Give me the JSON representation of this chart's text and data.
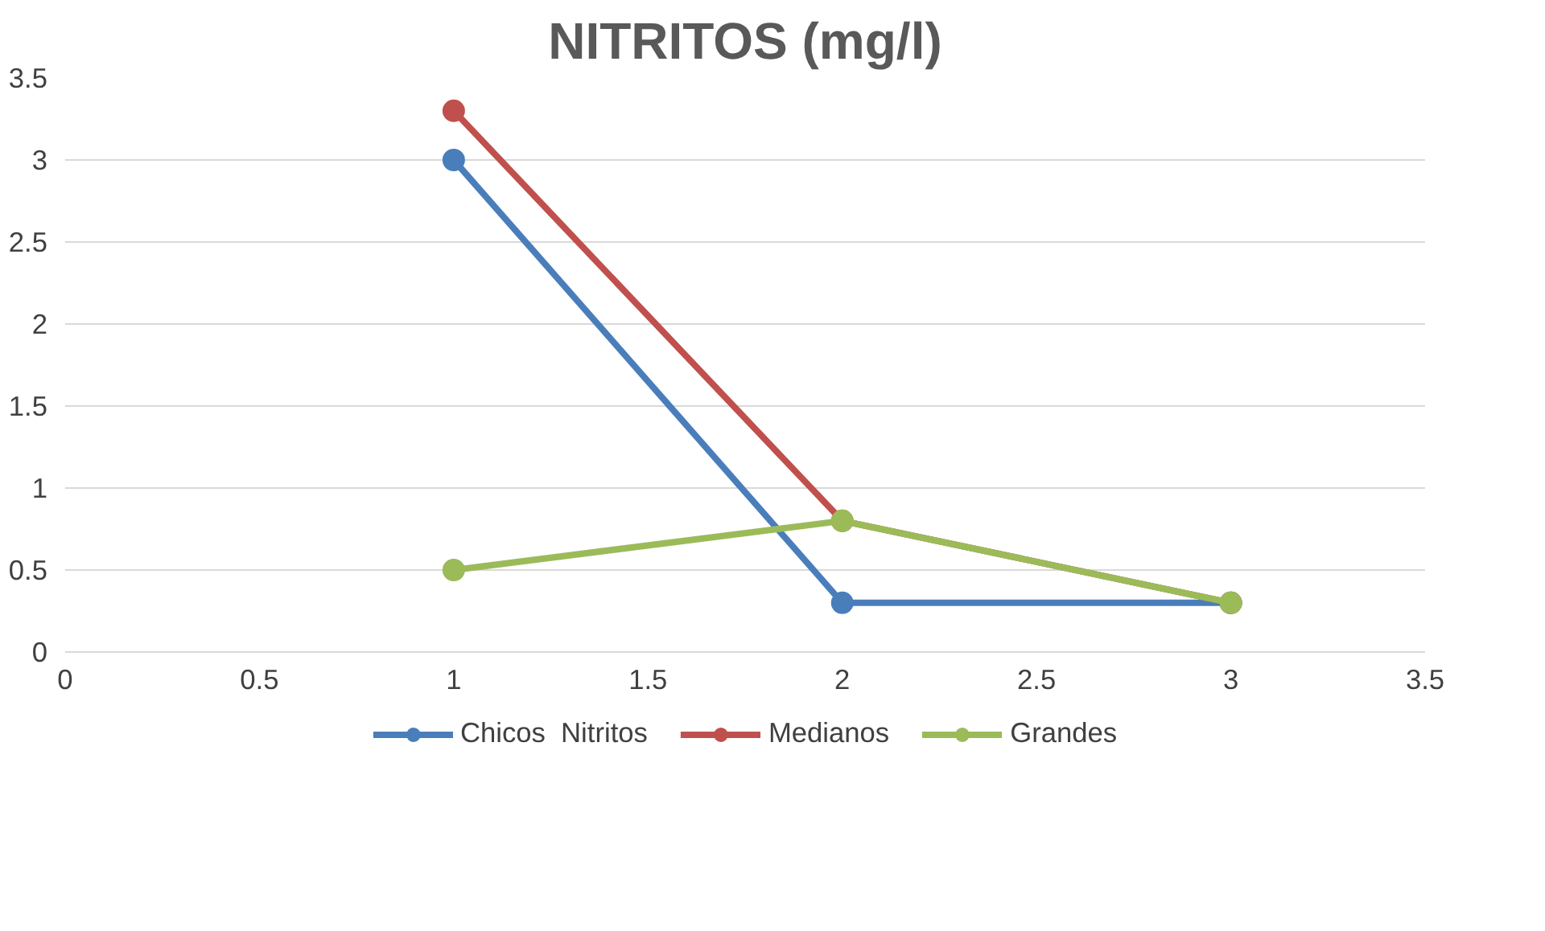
{
  "chart_data": {
    "type": "line",
    "title": "NITRITOS (mg/l)",
    "x": [
      1,
      2,
      3
    ],
    "series": [
      {
        "name": "Chicos  Nitritos",
        "color": "#4a7ebb",
        "values": [
          3,
          0.3,
          0.3
        ]
      },
      {
        "name": "Medianos",
        "color": "#c0504d",
        "values": [
          3.3,
          0.8,
          0.3
        ]
      },
      {
        "name": "Grandes",
        "color": "#9bbb59",
        "values": [
          0.5,
          0.8,
          0.3
        ]
      }
    ],
    "xlim": [
      0,
      3.5
    ],
    "xticks": [
      0,
      0.5,
      1,
      1.5,
      2,
      2.5,
      3,
      3.5
    ],
    "ylim": [
      0,
      3.5
    ],
    "yticks": [
      0,
      0.5,
      1,
      1.5,
      2,
      2.5,
      3,
      3.5
    ],
    "grid": "y",
    "legend": "bottom",
    "marker": "circle",
    "line_style": "solid"
  }
}
